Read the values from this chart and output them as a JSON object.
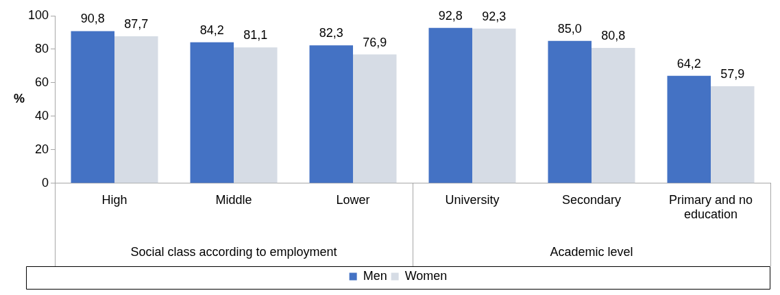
{
  "chart_data": {
    "type": "bar",
    "ylabel": "%",
    "categories": [
      "High",
      "Middle",
      "Lower",
      "University",
      "Secondary",
      "Primary and no education"
    ],
    "series": [
      {
        "name": "Men",
        "color": "#4472c4",
        "values": [
          90.8,
          84.2,
          82.3,
          92.8,
          85.0,
          64.2
        ],
        "value_labels": [
          "90,8",
          "84,2",
          "82,3",
          "92,8",
          "85,0",
          "64,2"
        ]
      },
      {
        "name": "Women",
        "color": "#d6dce5",
        "values": [
          87.7,
          81.1,
          76.9,
          92.3,
          80.8,
          57.9
        ],
        "value_labels": [
          "87,7",
          "81,1",
          "76,9",
          "92,3",
          "80,8",
          "57,9"
        ]
      }
    ],
    "ylim": [
      0,
      100
    ],
    "yticks": [
      0,
      20,
      40,
      60,
      80,
      100
    ],
    "grid": false,
    "legend": "bottom",
    "annotations": [
      "Social class according to employment",
      "Academic level"
    ]
  }
}
